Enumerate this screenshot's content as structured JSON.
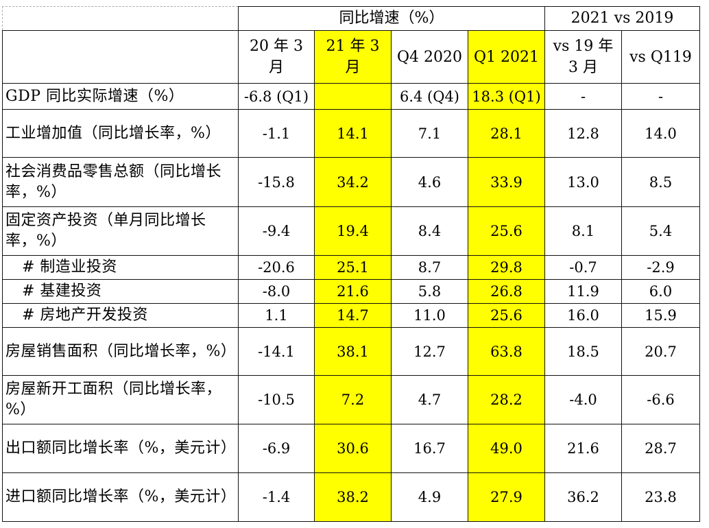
{
  "header": {
    "group1": "同比增速（%）",
    "group2": "2021 vs 2019",
    "columns": [
      "20 年 3 月",
      "21 年 3 月",
      "Q4 2020",
      "Q1 2021",
      "vs 19 年 3 月",
      "vs Q119"
    ]
  },
  "rows": [
    {
      "label": "GDP 同比实际增速（%）",
      "values": [
        "-6.8 (Q1)",
        "",
        "6.4 (Q4)",
        "18.3 (Q1)",
        "-",
        "-"
      ]
    },
    {
      "label": "工业增加值（同比增长率，%）",
      "values": [
        "-1.1",
        "14.1",
        "7.1",
        "28.1",
        "12.8",
        "14.0"
      ]
    },
    {
      "label": "社会消费品零售总额（同比增长率，%）",
      "values": [
        "-15.8",
        "34.2",
        "4.6",
        "33.9",
        "13.0",
        "8.5"
      ]
    },
    {
      "label": "固定资产投资（单月同比增长率，%）",
      "values": [
        "-9.4",
        "19.4",
        "8.4",
        "25.6",
        "8.1",
        "5.4"
      ]
    },
    {
      "label": "# 制造业投资",
      "values": [
        "-20.6",
        "25.1",
        "8.7",
        "29.8",
        "-0.7",
        "-2.9"
      ]
    },
    {
      "label": "# 基建投资",
      "values": [
        "-8.0",
        "21.6",
        "5.8",
        "26.8",
        "11.9",
        "6.0"
      ]
    },
    {
      "label": "# 房地产开发投资",
      "values": [
        "1.1",
        "14.7",
        "11.0",
        "25.6",
        "16.0",
        "15.9"
      ]
    },
    {
      "label": "房屋销售面积（同比增长率，%）",
      "values": [
        "-14.1",
        "38.1",
        "12.7",
        "63.8",
        "18.5",
        "20.7"
      ]
    },
    {
      "label": "房屋新开工面积（同比增长率，%）",
      "values": [
        "-10.5",
        "7.2",
        "4.7",
        "28.2",
        "-4.0",
        "-6.6"
      ]
    },
    {
      "label": "出口额同比增长率（%，美元计）",
      "values": [
        "-6.9",
        "30.6",
        "16.7",
        "49.0",
        "21.6",
        "28.7"
      ]
    },
    {
      "label": "进口额同比增长率（%，美元计）",
      "values": [
        "-1.4",
        "38.2",
        "4.9",
        "27.9",
        "36.2",
        "23.8"
      ]
    }
  ],
  "colors": {
    "highlight": "#ffff00"
  }
}
